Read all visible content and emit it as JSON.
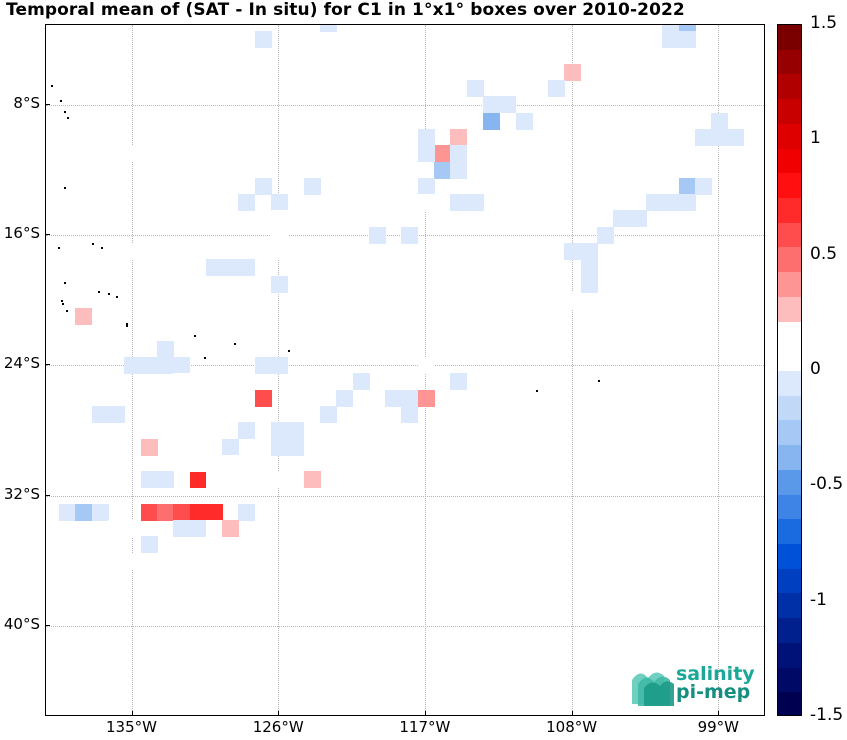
{
  "title": "Temporal mean of (SAT - In situ) for C1 in 1°x1° boxes over 2010-2022",
  "logo": {
    "line1": "salinity",
    "line2": "pi-mep"
  },
  "axes": {
    "lat_labels": [
      "8°S",
      "16°S",
      "24°S",
      "32°S",
      "40°S"
    ],
    "lon_labels": [
      "135°W",
      "126°W",
      "117°W",
      "108°W",
      "99°W"
    ]
  },
  "colorbar": {
    "labels": [
      "1.5",
      "1",
      "0.5",
      "0",
      "-0.5",
      "-1",
      "-1.5"
    ],
    "range": [
      -1.5,
      1.5
    ],
    "colors_top_to_bottom": [
      "#7a0000",
      "#960000",
      "#b00000",
      "#c80000",
      "#de0000",
      "#f00000",
      "#ff0f0f",
      "#ff2a2a",
      "#ff4d4d",
      "#fd6f6f",
      "#fd9595",
      "#fdbdbd",
      "#ffffff",
      "#ffffff",
      "#dce8fb",
      "#c2d8f7",
      "#a6c8f4",
      "#87b5f0",
      "#5a99ea",
      "#3d84e6",
      "#1a6ae0",
      "#0050d8",
      "#0040c0",
      "#0030a8",
      "#00208e",
      "#001277",
      "#000a66",
      "#000050"
    ]
  },
  "chart_data": {
    "type": "heatmap",
    "title": "Temporal mean of (SAT - In situ) for C1 in 1°x1° boxes over 2010-2022",
    "value_range": [
      -1.5,
      1.5
    ],
    "lon_range": [
      -140,
      -96
    ],
    "lat_range": [
      -46,
      -3
    ],
    "cells": [
      {
        "lon": -127,
        "lat": -4,
        "v": -0.1
      },
      {
        "lon": -123,
        "lat": -3,
        "v": -0.1
      },
      {
        "lon": -121,
        "lat": -3,
        "v": 0.1
      },
      {
        "lon": -120,
        "lat": -3,
        "v": 0.1
      },
      {
        "lon": -102,
        "lat": -3,
        "v": -0.1
      },
      {
        "lon": -101,
        "lat": -3,
        "v": -0.3
      },
      {
        "lon": -102,
        "lat": -4,
        "v": -0.1
      },
      {
        "lon": -101,
        "lat": -4,
        "v": -0.1
      },
      {
        "lon": -97,
        "lat": -4,
        "v": 0.2
      },
      {
        "lon": -109,
        "lat": -5,
        "v": 0.1
      },
      {
        "lon": -108,
        "lat": -6,
        "v": 0.3
      },
      {
        "lon": -109,
        "lat": -7,
        "v": -0.1
      },
      {
        "lon": -114,
        "lat": -7,
        "v": -0.1
      },
      {
        "lon": -113,
        "lat": -8,
        "v": -0.1
      },
      {
        "lon": -112,
        "lat": -8,
        "v": -0.1
      },
      {
        "lon": -111,
        "lat": -9,
        "v": -0.1
      },
      {
        "lon": -115,
        "lat": -9,
        "v": 0.1
      },
      {
        "lon": -99,
        "lat": -9,
        "v": -0.1
      },
      {
        "lon": -100,
        "lat": -10,
        "v": -0.1
      },
      {
        "lon": -99,
        "lat": -10,
        "v": -0.1
      },
      {
        "lon": -98,
        "lat": -10,
        "v": -0.1
      },
      {
        "lon": -113,
        "lat": -9,
        "v": -0.4
      },
      {
        "lon": -115,
        "lat": -10,
        "v": 0.3
      },
      {
        "lon": -117,
        "lat": -10,
        "v": -0.1
      },
      {
        "lon": -116,
        "lat": -11,
        "v": 0.4
      },
      {
        "lon": -115,
        "lat": -11,
        "v": -0.1
      },
      {
        "lon": -119,
        "lat": -11,
        "v": 0.1
      },
      {
        "lon": -135,
        "lat": -11,
        "v": 0.1
      },
      {
        "lon": -118,
        "lat": -12,
        "v": 0.1
      },
      {
        "lon": -117,
        "lat": -12,
        "v": 0.1
      },
      {
        "lon": -117,
        "lat": -11,
        "v": -0.1
      },
      {
        "lon": -116,
        "lat": -12,
        "v": -0.3
      },
      {
        "lon": -115,
        "lat": -12,
        "v": -0.1
      },
      {
        "lon": -117,
        "lat": -13,
        "v": -0.1
      },
      {
        "lon": -101,
        "lat": -13,
        "v": -0.3
      },
      {
        "lon": -102,
        "lat": -14,
        "v": -0.1
      },
      {
        "lon": -101,
        "lat": -14,
        "v": -0.1
      },
      {
        "lon": -103,
        "lat": -14,
        "v": -0.1
      },
      {
        "lon": -100,
        "lat": -13,
        "v": -0.1
      },
      {
        "lon": -96,
        "lat": -13,
        "v": 0.1
      },
      {
        "lon": -127,
        "lat": -13,
        "v": -0.1
      },
      {
        "lon": -124,
        "lat": -13,
        "v": -0.1
      },
      {
        "lon": -122,
        "lat": -14,
        "v": 0.1
      },
      {
        "lon": -121,
        "lat": -14,
        "v": 0.1
      },
      {
        "lon": -117,
        "lat": -14,
        "v": 0.1
      },
      {
        "lon": -116,
        "lat": -14,
        "v": 0.1
      },
      {
        "lon": -115,
        "lat": -14,
        "v": -0.1
      },
      {
        "lon": -114,
        "lat": -14,
        "v": -0.1
      },
      {
        "lon": -128,
        "lat": -14,
        "v": -0.1
      },
      {
        "lon": -126,
        "lat": -14,
        "v": -0.1
      },
      {
        "lon": -125,
        "lat": -15,
        "v": 0.1
      },
      {
        "lon": -124,
        "lat": -15,
        "v": 0.1
      },
      {
        "lon": -126,
        "lat": -15,
        "v": 0.1
      },
      {
        "lon": -118,
        "lat": -15,
        "v": 0.2
      },
      {
        "lon": -118,
        "lat": -16,
        "v": -0.1
      },
      {
        "lon": -126,
        "lat": -16,
        "v": 0.1
      },
      {
        "lon": -120,
        "lat": -16,
        "v": -0.1
      },
      {
        "lon": -105,
        "lat": -15,
        "v": -0.1
      },
      {
        "lon": -104,
        "lat": -15,
        "v": -0.1
      },
      {
        "lon": -106,
        "lat": -16,
        "v": -0.1
      },
      {
        "lon": -107,
        "lat": -17,
        "v": -0.1
      },
      {
        "lon": -108,
        "lat": -17,
        "v": -0.1
      },
      {
        "lon": -135,
        "lat": -17,
        "v": 0.1
      },
      {
        "lon": -131,
        "lat": -17,
        "v": 0.1
      },
      {
        "lon": -127,
        "lat": -17,
        "v": 0.2
      },
      {
        "lon": -126,
        "lat": -17,
        "v": 0.1
      },
      {
        "lon": -130,
        "lat": -18,
        "v": -0.1
      },
      {
        "lon": -129,
        "lat": -18,
        "v": -0.1
      },
      {
        "lon": -128,
        "lat": -18,
        "v": -0.1
      },
      {
        "lon": -106,
        "lat": -18,
        "v": 0.1
      },
      {
        "lon": -105,
        "lat": -18,
        "v": 0.1
      },
      {
        "lon": -107,
        "lat": -18,
        "v": -0.1
      },
      {
        "lon": -106,
        "lat": -19,
        "v": 0.1
      },
      {
        "lon": -107,
        "lat": -19,
        "v": -0.1
      },
      {
        "lon": -109,
        "lat": -20,
        "v": 0.2
      },
      {
        "lon": -108,
        "lat": -20,
        "v": 0.2
      },
      {
        "lon": -126,
        "lat": -19,
        "v": -0.1
      },
      {
        "lon": -132,
        "lat": -21,
        "v": 0.2
      },
      {
        "lon": -138,
        "lat": -21,
        "v": 0.3
      },
      {
        "lon": -138,
        "lat": -22,
        "v": 0.2
      },
      {
        "lon": -130,
        "lat": -22,
        "v": 0.1
      },
      {
        "lon": -133,
        "lat": -23,
        "v": -0.1
      },
      {
        "lon": -127,
        "lat": -24,
        "v": -0.1
      },
      {
        "lon": -126,
        "lat": -24,
        "v": -0.1
      },
      {
        "lon": -117,
        "lat": -24,
        "v": 0.2
      },
      {
        "lon": -134,
        "lat": -24,
        "v": -0.1
      },
      {
        "lon": -133,
        "lat": -24,
        "v": -0.1
      },
      {
        "lon": -132,
        "lat": -24,
        "v": -0.1
      },
      {
        "lon": -135,
        "lat": -24,
        "v": -0.1
      },
      {
        "lon": -121,
        "lat": -25,
        "v": -0.1
      },
      {
        "lon": -115,
        "lat": -25,
        "v": -0.1
      },
      {
        "lon": -132,
        "lat": -25,
        "v": 0.1
      },
      {
        "lon": -127,
        "lat": -26,
        "v": 0.6
      },
      {
        "lon": -122,
        "lat": -26,
        "v": -0.1
      },
      {
        "lon": -119,
        "lat": -26,
        "v": -0.1
      },
      {
        "lon": -118,
        "lat": -26,
        "v": -0.1
      },
      {
        "lon": -117,
        "lat": -26,
        "v": 0.4
      },
      {
        "lon": -139,
        "lat": -27,
        "v": 0.1
      },
      {
        "lon": -137,
        "lat": -27,
        "v": -0.1
      },
      {
        "lon": -136,
        "lat": -27,
        "v": -0.1
      },
      {
        "lon": -129,
        "lat": -27,
        "v": 0.1
      },
      {
        "lon": -123,
        "lat": -27,
        "v": -0.1
      },
      {
        "lon": -118,
        "lat": -27,
        "v": -0.1
      },
      {
        "lon": -133,
        "lat": -28,
        "v": 0.1
      },
      {
        "lon": -128,
        "lat": -28,
        "v": -0.1
      },
      {
        "lon": -126,
        "lat": -28,
        "v": -0.1
      },
      {
        "lon": -125,
        "lat": -28,
        "v": -0.1
      },
      {
        "lon": -121,
        "lat": -28,
        "v": 0.1
      },
      {
        "lon": -120,
        "lat": -28,
        "v": 0.1
      },
      {
        "lon": -134,
        "lat": -29,
        "v": 0.3
      },
      {
        "lon": -132,
        "lat": -29,
        "v": 0.1
      },
      {
        "lon": -129,
        "lat": -29,
        "v": -0.1
      },
      {
        "lon": -126,
        "lat": -29,
        "v": -0.1
      },
      {
        "lon": -125,
        "lat": -29,
        "v": -0.1
      },
      {
        "lon": -123,
        "lat": -29,
        "v": 0.1
      },
      {
        "lon": -130,
        "lat": -30,
        "v": 0.1
      },
      {
        "lon": -129,
        "lat": -30,
        "v": 0.2
      },
      {
        "lon": -124,
        "lat": -30,
        "v": 0.1
      },
      {
        "lon": -131,
        "lat": -31,
        "v": 0.7
      },
      {
        "lon": -130,
        "lat": -31,
        "v": 0.1
      },
      {
        "lon": -127,
        "lat": -31,
        "v": 0.1
      },
      {
        "lon": -126,
        "lat": -31,
        "v": 0.1
      },
      {
        "lon": -124,
        "lat": -31,
        "v": 0.3
      },
      {
        "lon": -134,
        "lat": -31,
        "v": -0.1
      },
      {
        "lon": -133,
        "lat": -31,
        "v": -0.1
      },
      {
        "lon": -131,
        "lat": -30,
        "v": 0.1
      },
      {
        "lon": -139,
        "lat": -33,
        "v": -0.1
      },
      {
        "lon": -138,
        "lat": -33,
        "v": -0.3
      },
      {
        "lon": -137,
        "lat": -33,
        "v": -0.1
      },
      {
        "lon": -134,
        "lat": -33,
        "v": 0.6
      },
      {
        "lon": -133,
        "lat": -33,
        "v": 0.5
      },
      {
        "lon": -132,
        "lat": -33,
        "v": 0.6
      },
      {
        "lon": -131,
        "lat": -33,
        "v": 0.7
      },
      {
        "lon": -130,
        "lat": -33,
        "v": 0.7
      },
      {
        "lon": -128,
        "lat": -33,
        "v": -0.1
      },
      {
        "lon": -136,
        "lat": -34,
        "v": 0.1
      },
      {
        "lon": -135,
        "lat": -34,
        "v": 0.1
      },
      {
        "lon": -132,
        "lat": -34,
        "v": -0.1
      },
      {
        "lon": -131,
        "lat": -34,
        "v": -0.1
      },
      {
        "lon": -130,
        "lat": -34,
        "v": 0.1
      },
      {
        "lon": -129,
        "lat": -34,
        "v": 0.3
      },
      {
        "lon": -139,
        "lat": -35,
        "v": 0.1
      },
      {
        "lon": -138,
        "lat": -35,
        "v": 0.1
      },
      {
        "lon": -134,
        "lat": -35,
        "v": -0.1
      },
      {
        "lon": -135,
        "lat": -36,
        "v": 0.2
      }
    ]
  }
}
